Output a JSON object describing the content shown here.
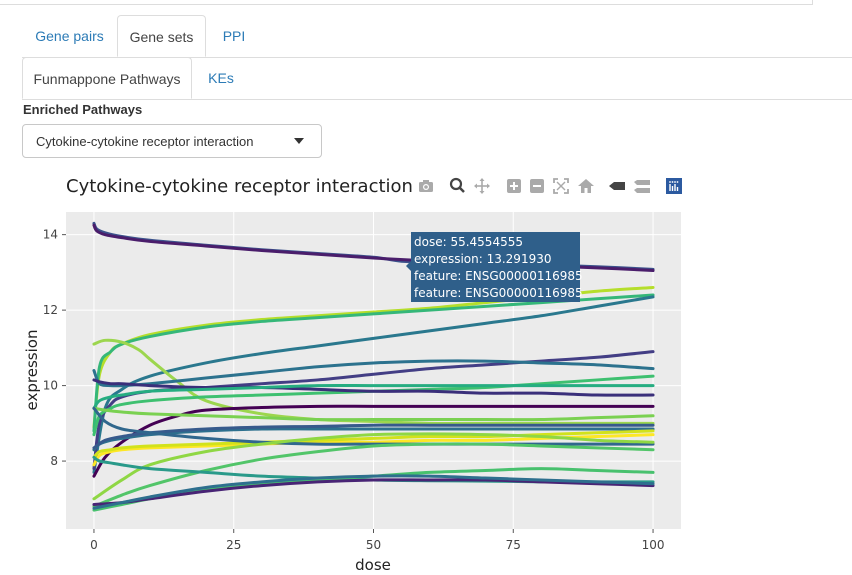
{
  "tabs_main": [
    {
      "label": "Gene pairs",
      "active": false
    },
    {
      "label": "Gene sets",
      "active": true
    },
    {
      "label": "PPI",
      "active": false
    }
  ],
  "tabs_sub": [
    {
      "label": "Funmappone Pathways",
      "active": true
    },
    {
      "label": "KEs",
      "active": false
    }
  ],
  "section_label": "Enriched Pathways",
  "pathway_select": {
    "value": "Cytokine-cytokine receptor interaction"
  },
  "modebar_icons": [
    "camera-icon",
    "zoom-icon",
    "pan-icon",
    "zoom-in-icon",
    "zoom-out-icon",
    "autoscale-icon",
    "home-icon",
    "hover-closest-icon",
    "hover-compare-icon",
    "plotly-logo-icon"
  ],
  "tooltip": {
    "line1": "dose:  55.4554555",
    "line2": "expression: 13.291930",
    "line3": "feature: ENSG00000116985",
    "line4": "feature: ENSG00000116985",
    "bg_color": "#2f5f8a"
  },
  "chart_data": {
    "type": "line",
    "title": "Cytokine-cytokine receptor interaction",
    "xlabel": "dose",
    "ylabel": "expression",
    "xlim": [
      -5,
      105
    ],
    "ylim": [
      6.2,
      14.6
    ],
    "xticks": [
      0,
      25,
      50,
      75,
      100
    ],
    "yticks": [
      8,
      10,
      12,
      14
    ],
    "grid": true,
    "background": "#ebebeb",
    "series": [
      {
        "color": "#3b528b",
        "x": [
          0,
          0.5,
          2,
          5,
          10,
          20,
          30,
          40,
          50,
          55.46,
          60,
          70,
          80,
          90,
          100
        ],
        "y": [
          14.3,
          14.15,
          14.05,
          13.95,
          13.85,
          13.72,
          13.6,
          13.5,
          13.4,
          13.29,
          13.3,
          13.25,
          13.2,
          13.15,
          13.08
        ]
      },
      {
        "color": "#4a1d6b",
        "x": [
          0,
          0.5,
          2,
          5,
          10,
          20,
          30,
          40,
          50,
          60,
          70,
          80,
          90,
          100
        ],
        "y": [
          14.25,
          14.1,
          14.0,
          13.92,
          13.82,
          13.7,
          13.58,
          13.48,
          13.38,
          13.3,
          13.24,
          13.18,
          13.12,
          13.05
        ]
      },
      {
        "color": "#b5de2b",
        "x": [
          0,
          1,
          3,
          5,
          10,
          20,
          30,
          40,
          50,
          60,
          70,
          80,
          90,
          100
        ],
        "y": [
          8.9,
          10.3,
          10.9,
          11.1,
          11.35,
          11.6,
          11.75,
          11.85,
          11.95,
          12.05,
          12.2,
          12.35,
          12.5,
          12.6
        ]
      },
      {
        "color": "#35b779",
        "x": [
          0,
          1,
          3,
          5,
          10,
          20,
          30,
          40,
          50,
          60,
          70,
          80,
          90,
          100
        ],
        "y": [
          8.8,
          10.5,
          10.9,
          11.1,
          11.3,
          11.55,
          11.7,
          11.8,
          11.9,
          12.0,
          12.1,
          12.2,
          12.3,
          12.4
        ]
      },
      {
        "color": "#2a788e",
        "x": [
          0,
          2,
          5,
          10,
          20,
          30,
          40,
          50,
          60,
          70,
          80,
          90,
          100
        ],
        "y": [
          7.7,
          9.4,
          9.9,
          10.25,
          10.6,
          10.85,
          11.05,
          11.25,
          11.45,
          11.65,
          11.85,
          12.1,
          12.35
        ]
      },
      {
        "color": "#9cd64e",
        "x": [
          0,
          2,
          5,
          8,
          10,
          15,
          20,
          30,
          40,
          50,
          60,
          70,
          80,
          90,
          100
        ],
        "y": [
          11.1,
          11.2,
          11.15,
          10.95,
          10.7,
          10.1,
          9.6,
          9.25,
          9.1,
          9.05,
          9.0,
          9.0,
          9.0,
          9.0,
          9.0
        ]
      },
      {
        "color": "#433e85",
        "x": [
          0,
          1,
          3,
          5,
          10,
          20,
          30,
          40,
          50,
          60,
          70,
          80,
          90,
          100
        ],
        "y": [
          7.8,
          9.0,
          9.5,
          9.7,
          9.85,
          9.95,
          10.05,
          10.15,
          10.3,
          10.45,
          10.55,
          10.65,
          10.75,
          10.9
        ]
      },
      {
        "color": "#2c728e",
        "x": [
          0,
          1,
          3,
          5,
          10,
          20,
          30,
          40,
          50,
          60,
          70,
          80,
          90,
          100
        ],
        "y": [
          10.4,
          10.05,
          10.0,
          10.0,
          10.05,
          10.2,
          10.35,
          10.5,
          10.6,
          10.65,
          10.65,
          10.6,
          10.55,
          10.45
        ]
      },
      {
        "color": "#3ec070",
        "x": [
          0,
          1,
          3,
          5,
          10,
          20,
          30,
          40,
          50,
          60,
          70,
          80,
          90,
          100
        ],
        "y": [
          8.7,
          9.2,
          9.4,
          9.5,
          9.6,
          9.7,
          9.75,
          9.8,
          9.85,
          9.9,
          9.95,
          10.05,
          10.15,
          10.25
        ]
      },
      {
        "color": "#3a2f7a",
        "x": [
          0,
          1,
          3,
          5,
          10,
          20,
          30,
          40,
          50,
          60,
          70,
          80,
          90,
          100
        ],
        "y": [
          10.15,
          10.1,
          10.05,
          10.05,
          10.0,
          9.95,
          9.95,
          9.9,
          9.85,
          9.85,
          9.8,
          9.8,
          9.75,
          9.75
        ]
      },
      {
        "color": "#26ad81",
        "x": [
          0,
          1,
          3,
          5,
          10,
          20,
          30,
          40,
          50,
          60,
          70,
          80,
          90,
          100
        ],
        "y": [
          9.4,
          9.6,
          9.7,
          9.75,
          9.85,
          9.9,
          9.95,
          10.0,
          10.0,
          10.0,
          10.0,
          10.0,
          10.0,
          10.0
        ]
      },
      {
        "color": "#440154",
        "x": [
          0,
          2,
          5,
          10,
          15,
          20,
          30,
          40,
          50,
          60,
          70,
          80,
          90,
          100
        ],
        "y": [
          7.6,
          8.1,
          8.5,
          8.95,
          9.2,
          9.35,
          9.42,
          9.45,
          9.45,
          9.45,
          9.45,
          9.45,
          9.45,
          9.45
        ]
      },
      {
        "color": "#7ad151",
        "x": [
          0,
          2,
          5,
          10,
          20,
          30,
          40,
          50,
          60,
          70,
          80,
          90,
          100
        ],
        "y": [
          9.4,
          9.35,
          9.3,
          9.25,
          9.2,
          9.15,
          9.1,
          9.1,
          9.1,
          9.1,
          9.1,
          9.15,
          9.2
        ]
      },
      {
        "color": "#2d708e",
        "x": [
          0,
          1,
          3,
          5,
          10,
          20,
          30,
          40,
          50,
          60,
          70,
          80,
          90,
          100
        ],
        "y": [
          8.3,
          8.45,
          8.55,
          8.6,
          8.7,
          8.8,
          8.85,
          8.85,
          8.85,
          8.85,
          8.85,
          8.85,
          8.85,
          8.85
        ]
      },
      {
        "color": "#fde725",
        "x": [
          0,
          1,
          3,
          5,
          10,
          20,
          30,
          40,
          50,
          60,
          70,
          80,
          90,
          100
        ],
        "y": [
          7.9,
          8.15,
          8.25,
          8.3,
          8.35,
          8.4,
          8.45,
          8.5,
          8.5,
          8.55,
          8.55,
          8.6,
          8.65,
          8.7
        ]
      },
      {
        "color": "#d2e21b",
        "x": [
          0,
          1,
          3,
          5,
          10,
          20,
          30,
          40,
          50,
          60,
          70,
          80,
          90,
          100
        ],
        "y": [
          8.1,
          8.25,
          8.3,
          8.35,
          8.4,
          8.45,
          8.5,
          8.55,
          8.6,
          8.65,
          8.65,
          8.7,
          8.75,
          8.8
        ]
      },
      {
        "color": "#375a8c",
        "x": [
          0,
          2,
          5,
          10,
          20,
          30,
          40,
          50,
          60,
          70,
          80,
          90,
          100
        ],
        "y": [
          8.35,
          8.55,
          8.65,
          8.75,
          8.85,
          8.9,
          8.92,
          8.95,
          8.95,
          8.95,
          8.95,
          8.95,
          8.95
        ]
      },
      {
        "color": "#30678d",
        "x": [
          0,
          2,
          5,
          10,
          20,
          30,
          40,
          50,
          60,
          70,
          80,
          90,
          100
        ],
        "y": [
          9.4,
          9.05,
          8.85,
          8.75,
          8.6,
          8.5,
          8.45,
          8.45,
          8.45,
          8.45,
          8.45,
          8.45,
          8.45
        ]
      },
      {
        "color": "#52c569",
        "x": [
          0,
          5,
          10,
          20,
          30,
          40,
          50,
          60,
          70,
          80,
          90,
          100
        ],
        "y": [
          6.8,
          7.1,
          7.35,
          7.75,
          8.05,
          8.25,
          8.4,
          8.45,
          8.45,
          8.4,
          8.35,
          8.3
        ]
      },
      {
        "color": "#8fd744",
        "x": [
          0,
          5,
          10,
          20,
          30,
          40,
          50,
          60,
          70,
          80,
          90,
          100
        ],
        "y": [
          7.0,
          7.5,
          7.9,
          8.25,
          8.45,
          8.6,
          8.7,
          8.72,
          8.7,
          8.65,
          8.55,
          8.5
        ]
      },
      {
        "color": "#2a9a8a",
        "x": [
          0,
          1,
          3,
          5,
          10,
          20,
          30,
          40,
          50,
          60,
          70,
          80,
          90,
          100
        ],
        "y": [
          8.1,
          8.0,
          7.95,
          7.9,
          7.8,
          7.7,
          7.6,
          7.55,
          7.5,
          7.48,
          7.47,
          7.45,
          7.45,
          7.45
        ]
      },
      {
        "color": "#48c16e",
        "x": [
          0,
          5,
          10,
          20,
          30,
          40,
          50,
          60,
          70,
          80,
          90,
          100
        ],
        "y": [
          6.7,
          6.85,
          7.0,
          7.25,
          7.4,
          7.5,
          7.6,
          7.7,
          7.75,
          7.8,
          7.75,
          7.7
        ]
      },
      {
        "color": "#482475",
        "x": [
          0,
          5,
          10,
          20,
          30,
          40,
          50,
          60,
          70,
          80,
          90,
          100
        ],
        "y": [
          6.85,
          6.9,
          7.0,
          7.2,
          7.35,
          7.45,
          7.5,
          7.5,
          7.5,
          7.45,
          7.4,
          7.35
        ]
      },
      {
        "color": "#2e6f8e",
        "x": [
          0,
          5,
          10,
          20,
          30,
          40,
          50,
          60,
          70,
          80,
          90,
          100
        ],
        "y": [
          6.75,
          6.9,
          7.05,
          7.3,
          7.45,
          7.55,
          7.6,
          7.6,
          7.55,
          7.5,
          7.45,
          7.4
        ]
      }
    ]
  }
}
